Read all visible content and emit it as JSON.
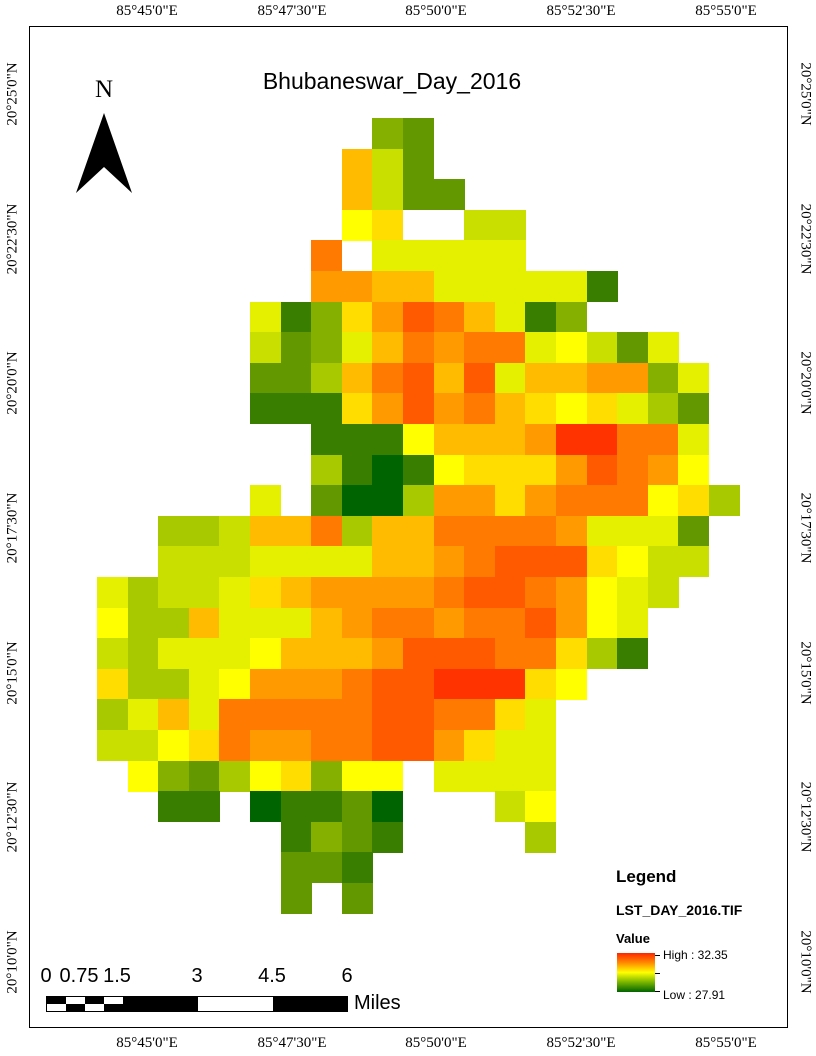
{
  "map": {
    "title": "Bhubaneswar_Day_2016",
    "north_label": "N",
    "grid_labels": {
      "longitude": [
        "85°45'0\"E",
        "85°47'30\"E",
        "85°50'0\"E",
        "85°52'30\"E",
        "85°55'0\"E"
      ],
      "latitude": [
        "20°25'0\"N",
        "20°22'30\"N",
        "20°20'0\"N",
        "20°17'30\"N",
        "20°15'0\"N",
        "20°12'30\"N",
        "20°10'0\"N"
      ]
    }
  },
  "legend": {
    "title": "Legend",
    "layer": "LST_DAY_2016.TIF",
    "value_label": "Value",
    "high_label": "High : 32.35",
    "low_label": "Low : 27.91",
    "colors": {
      "high": "#ff2600",
      "mid": "#ffff00",
      "low": "#006400"
    }
  },
  "scale_bar": {
    "numbers": [
      "0",
      "0.75",
      "1.5",
      "3",
      "4.5",
      "6"
    ],
    "units": "Miles"
  },
  "raster": {
    "palette": {
      "a": "#ff3300",
      "b": "#ff5a00",
      "c": "#ff7a00",
      "d": "#ff9a00",
      "e": "#ffbb00",
      "f": "#ffdd00",
      "g": "#ffff00",
      "h": "#e4f000",
      "i": "#c8df00",
      "j": "#a8c800",
      "k": "#86b000",
      "l": "#649800",
      "m": "#3a7e00",
      "n": "#006400"
    },
    "rows": [
      ".........kl.................",
      "........eil.................",
      "........eill................",
      "........gf..ii..............",
      ".......c.hhhhh..............",
      ".......ddeehhhhhm...........",
      ".....hmkfdbcehmk............",
      ".....ilkhecdcchgilh.........",
      ".....lljecbebheeddkh........",
      ".....mmmfdbdcefgfhjl........",
      ".......mmmgeeedaacch........",
      ".......jmnmgfffdbcdg........",
      ".....h.lnnjddfdcccgfj.......",
      "..jjieecjeeccccdhhhl........",
      "..iiihhhheedcbbbfgii........",
      "hjiihfeddddcbbcdghi.........",
      "gjjehhhedccdccbdgh..........",
      "ijhhhgeeedbbbccfjm..........",
      "fjjhgdddcbbaaafg............",
      "jhehcccccbbccfh.............",
      "iigfcddccbbdfhh.............",
      ".gkljgfkgg.hhhh.............",
      "..mm.nmmln...ig.............",
      "......mklm....j.............",
      "......llm...................",
      "......l.l...................",
      "............................"
    ]
  }
}
